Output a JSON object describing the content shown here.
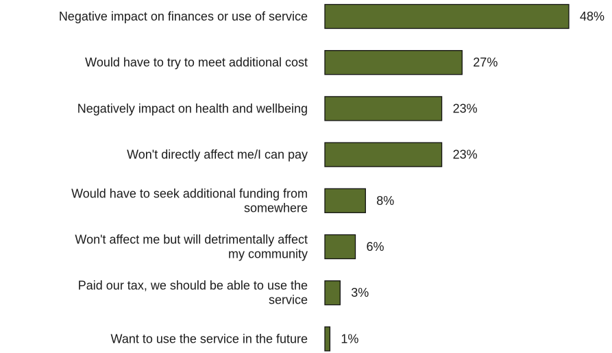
{
  "chart_data": {
    "type": "bar",
    "orientation": "horizontal",
    "title": "",
    "xlabel": "",
    "ylabel": "",
    "grid": false,
    "legend": "none",
    "categories": [
      "Negative impact on finances or use of service",
      "Would have to try to meet additional cost",
      "Negatively impact on health and wellbeing",
      "Won't directly affect me/I can pay",
      "Would have to seek additional funding from somewhere",
      "Won't affect me but will detrimentally affect my community",
      "Paid our tax, we should be able to use the service",
      "Want to use the service in the future"
    ],
    "category_lines": [
      [
        "Negative impact on finances or use of service"
      ],
      [
        "Would have to try to meet additional cost"
      ],
      [
        "Negatively impact on health and wellbeing"
      ],
      [
        "Won't directly affect me/I can pay"
      ],
      [
        "Would have to seek additional funding from",
        "somewhere"
      ],
      [
        "Won't affect me but will detrimentally affect",
        "my community"
      ],
      [
        "Paid our tax, we should be able to use the",
        "service"
      ],
      [
        "Want to use the service in the future"
      ]
    ],
    "values": [
      48,
      27,
      23,
      23,
      8,
      6,
      3,
      1
    ],
    "value_labels": [
      "48%",
      "27%",
      "23%",
      "23%",
      "8%",
      "6%",
      "3%",
      "1%"
    ],
    "xlim": [
      0,
      48
    ],
    "colors": {
      "bar_fill": "#5a6e2c",
      "bar_stroke": "#111111",
      "text": "#1a1a1a"
    }
  }
}
